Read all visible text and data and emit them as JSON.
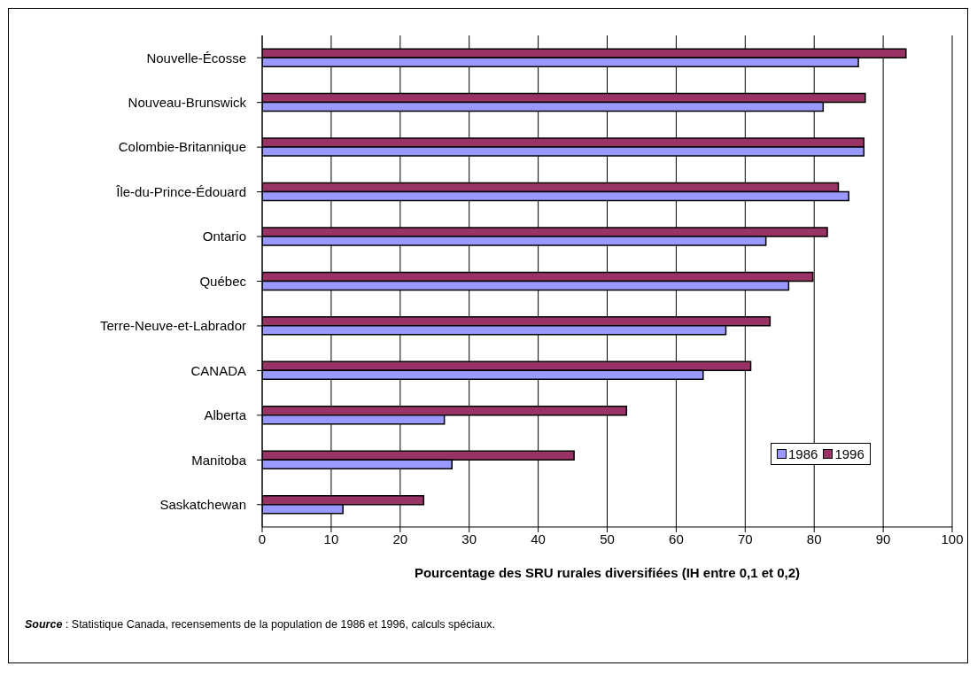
{
  "chart_data": {
    "type": "bar",
    "orientation": "horizontal",
    "categories": [
      "Nouvelle-Écosse",
      "Nouveau-Brunswick",
      "Colombie-Britannique",
      "Île-du-Prince-Édouard",
      "Ontario",
      "Québec",
      "Terre-Neuve-et-Labrador",
      "CANADA",
      "Alberta",
      "Manitoba",
      "Saskatchewan"
    ],
    "series": [
      {
        "name": "1986",
        "color": "#9999ff",
        "values": [
          86.4,
          81.3,
          87.2,
          85.0,
          73.0,
          76.3,
          67.2,
          63.9,
          26.4,
          27.5,
          11.7
        ]
      },
      {
        "name": "1996",
        "color": "#993366",
        "values": [
          93.3,
          87.4,
          87.2,
          83.5,
          81.9,
          79.8,
          73.6,
          70.8,
          52.8,
          45.2,
          23.4
        ]
      }
    ],
    "xlim": [
      0,
      100
    ],
    "xticks": [
      0,
      10,
      20,
      30,
      40,
      50,
      60,
      70,
      80,
      90,
      100
    ],
    "xlabel": "Pourcentage des SRU rurales diversifiées (IH entre 0,1 et 0,2)",
    "grid": "x",
    "legend": "right",
    "annotations": [
      "Source : Statistique Canada, recensements de la population de 1986 et 1996, calculs spéciaux."
    ]
  }
}
